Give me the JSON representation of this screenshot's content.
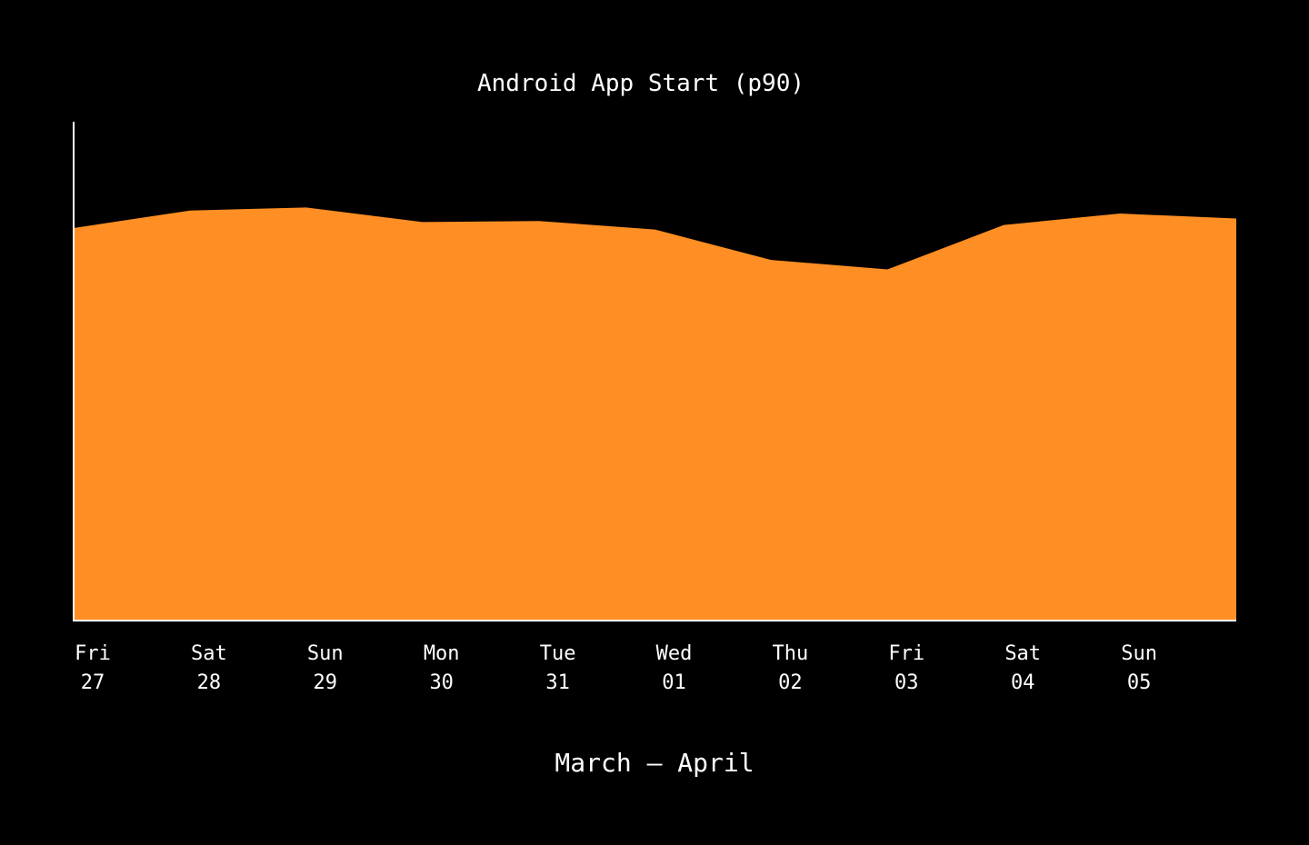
{
  "chart_data": {
    "type": "area",
    "title": "Android App Start (p90)",
    "xlabel": "March – April",
    "ylabel": "",
    "categories": [
      {
        "day": "Fri",
        "date": "27"
      },
      {
        "day": "Sat",
        "date": "28"
      },
      {
        "day": "Sun",
        "date": "29"
      },
      {
        "day": "Mon",
        "date": "30"
      },
      {
        "day": "Tue",
        "date": "31"
      },
      {
        "day": "Wed",
        "date": "01"
      },
      {
        "day": "Thu",
        "date": "02"
      },
      {
        "day": "Fri",
        "date": "03"
      },
      {
        "day": "Sat",
        "date": "04"
      },
      {
        "day": "Sun",
        "date": "05"
      },
      {
        "day": "",
        "date": ""
      }
    ],
    "series": [
      {
        "values": [
          0.787,
          0.822,
          0.828,
          0.799,
          0.801,
          0.784,
          0.723,
          0.704,
          0.793,
          0.816,
          0.806
        ]
      }
    ],
    "ylim": [
      0,
      1
    ],
    "grid": false,
    "legend": "none",
    "colors": {
      "background": "#000000",
      "area_fill": "#ff8f24",
      "axis": "#ffffff",
      "text": "#ffffff"
    }
  }
}
